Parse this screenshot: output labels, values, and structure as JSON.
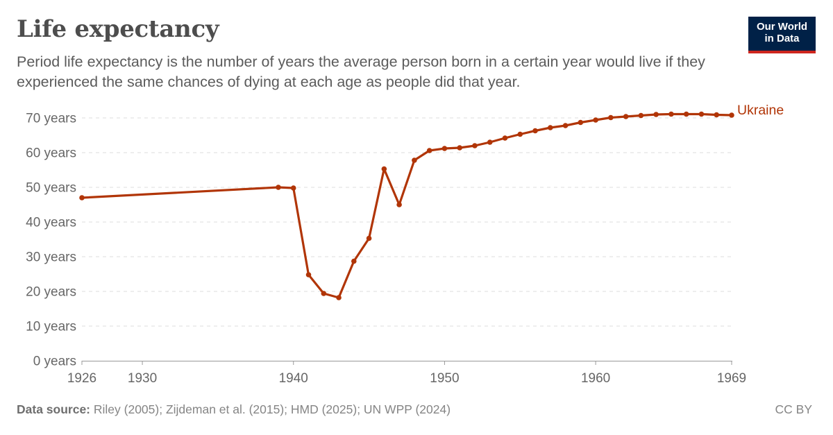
{
  "header": {
    "title": "Life expectancy",
    "subtitle": "Period life expectancy is the number of years the average person born in a certain year would live if they experienced the same chances of dying at each age as people did that year."
  },
  "logo": {
    "line1": "Our World",
    "line2": "in Data"
  },
  "footer": {
    "source_label": "Data source:",
    "source_text": " Riley (2005); Zijdeman et al. (2015); HMD (2025); UN WPP (2024)",
    "license": "CC BY"
  },
  "colors": {
    "series": "#b13507",
    "grid": "#dddddd",
    "text": "#666666",
    "logo_bg": "#002147",
    "logo_accent": "#ce261e"
  },
  "chart_data": {
    "type": "line",
    "title": "Life expectancy",
    "xlim": [
      1926,
      1969
    ],
    "ylim": [
      0,
      70
    ],
    "x_ticks": [
      1926,
      1930,
      1940,
      1950,
      1960,
      1969
    ],
    "y_ticks": [
      0,
      10,
      20,
      30,
      40,
      50,
      60,
      70
    ],
    "y_tick_labels": [
      "0 years",
      "10 years",
      "20 years",
      "30 years",
      "40 years",
      "50 years",
      "60 years",
      "70 years"
    ],
    "grid": "horizontal-dashed",
    "series": [
      {
        "name": "Ukraine",
        "color": "#b13507",
        "x": [
          1926,
          1939,
          1940,
          1941,
          1942,
          1943,
          1944,
          1945,
          1946,
          1947,
          1948,
          1949,
          1950,
          1951,
          1952,
          1953,
          1954,
          1955,
          1956,
          1957,
          1958,
          1959,
          1960,
          1961,
          1962,
          1963,
          1964,
          1965,
          1966,
          1967,
          1968,
          1969
        ],
        "y": [
          47.0,
          50.0,
          49.8,
          24.8,
          19.4,
          18.2,
          28.7,
          35.3,
          55.3,
          45.0,
          57.8,
          60.6,
          61.2,
          61.4,
          62.0,
          63.0,
          64.2,
          65.3,
          66.3,
          67.2,
          67.8,
          68.7,
          69.4,
          70.1,
          70.4,
          70.7,
          71.0,
          71.1,
          71.1,
          71.1,
          70.9,
          70.8
        ]
      }
    ]
  }
}
